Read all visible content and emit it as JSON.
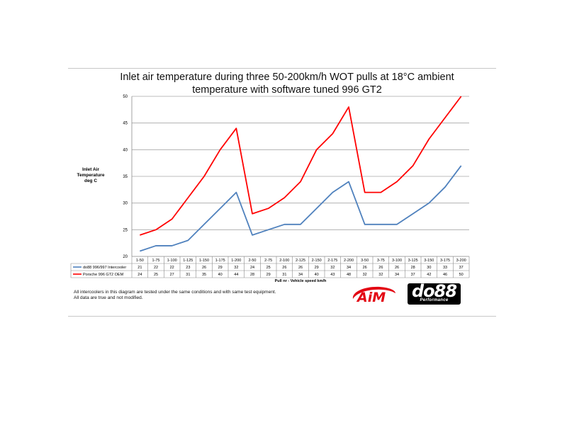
{
  "chart_data": {
    "type": "line",
    "title": [
      "Inlet air temperature during three 50-200km/h WOT pulls at 18°C ambient",
      "temperature with software tuned 996 GT2"
    ],
    "ylabel": [
      "Inlet Air",
      "Temperature",
      "deg C"
    ],
    "xlabel": "Pull nr - Vehicle speed km/h",
    "ylim": [
      20,
      50
    ],
    "yticks": [
      20,
      25,
      30,
      35,
      40,
      45,
      50
    ],
    "grid": true,
    "legend": "data-table",
    "categories": [
      "1-50",
      "1-75",
      "1-100",
      "1-125",
      "1-150",
      "1-175",
      "1-200",
      "2-50",
      "2-75",
      "2-100",
      "2-125",
      "2-150",
      "2-175",
      "2-200",
      "3-50",
      "3-75",
      "3-100",
      "3-125",
      "3-150",
      "3-175",
      "3-200"
    ],
    "series": [
      {
        "name": "do88 996/997 Intercooler",
        "color": "#4f81bd",
        "values": [
          21,
          22,
          22,
          23,
          26,
          29,
          32,
          24,
          25,
          26,
          26,
          29,
          32,
          34,
          26,
          26,
          26,
          28,
          30,
          33,
          37
        ]
      },
      {
        "name": "Porsche 996 GT2 OEM",
        "color": "#ff0000",
        "values": [
          24,
          25,
          27,
          31,
          35,
          40,
          44,
          28,
          29,
          31,
          34,
          40,
          43,
          48,
          32,
          32,
          34,
          37,
          42,
          46,
          50
        ]
      }
    ]
  },
  "notes": [
    "All intercoolers in this diagram are tested under the same conditions and with same test equipment.",
    "All data are true and not modified."
  ],
  "logos": {
    "aim": "AiM",
    "do88": "do88",
    "do88_sub": "Performance"
  }
}
